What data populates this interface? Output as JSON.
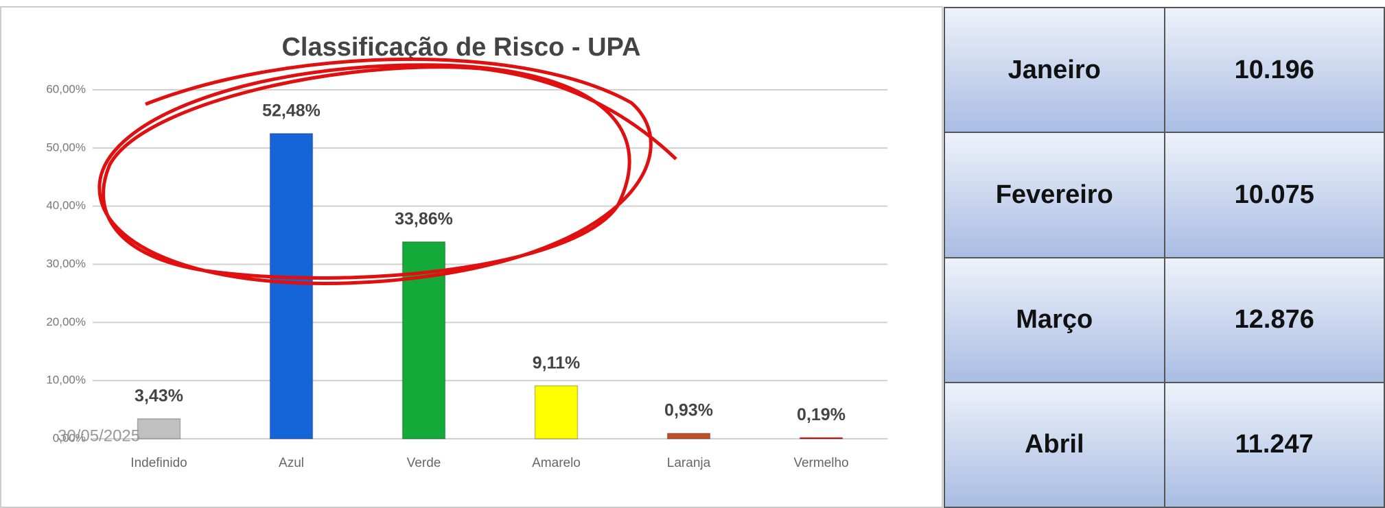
{
  "chart_data": {
    "type": "bar",
    "title": "Classificação de Risco - UPA",
    "categories": [
      "Indefinido",
      "Azul",
      "Verde",
      "Amarelo",
      "Laranja",
      "Vermelho"
    ],
    "values": [
      3.43,
      52.48,
      33.86,
      9.11,
      0.93,
      0.19
    ],
    "value_labels": [
      "3,43%",
      "52,48%",
      "33,86%",
      "9,11%",
      "0,93%",
      "0,19%"
    ],
    "colors": [
      "#c0c0c0",
      "#1565d8",
      "#13aa3a",
      "#ffff00",
      "#c0502a",
      "#e00000"
    ],
    "ylim": [
      0,
      60
    ],
    "yticks": [
      {
        "value": 0,
        "label": "0,00%"
      },
      {
        "value": 10,
        "label": "10,00%"
      },
      {
        "value": 20,
        "label": "20,00%"
      },
      {
        "value": 30,
        "label": "30,00%"
      },
      {
        "value": 40,
        "label": "40,00%"
      },
      {
        "value": 50,
        "label": "50,00%"
      },
      {
        "value": 60,
        "label": "60,00%"
      }
    ],
    "grid": true,
    "annotation": "30/05/2025"
  },
  "table": {
    "rows": [
      [
        "Janeiro",
        "10.196"
      ],
      [
        "Fevereiro",
        "10.075"
      ],
      [
        "Março",
        "12.876"
      ],
      [
        "Abril",
        "11.247"
      ]
    ]
  }
}
